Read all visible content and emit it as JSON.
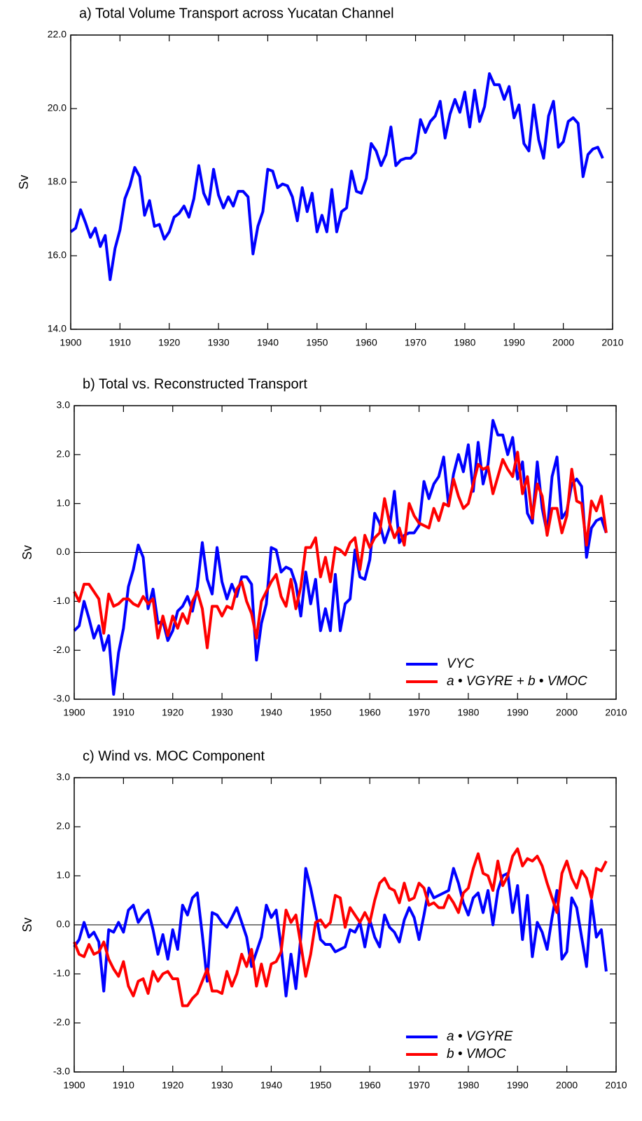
{
  "chart_data": [
    {
      "type": "line",
      "title": "a) Total Volume Transport across Yucatan Channel",
      "y_label": "Sv",
      "x": [
        1900,
        1901,
        1902,
        1903,
        1904,
        1905,
        1906,
        1907,
        1908,
        1909,
        1910,
        1911,
        1912,
        1913,
        1914,
        1915,
        1916,
        1917,
        1918,
        1919,
        1920,
        1921,
        1922,
        1923,
        1924,
        1925,
        1926,
        1927,
        1928,
        1929,
        1930,
        1931,
        1932,
        1933,
        1934,
        1935,
        1936,
        1937,
        1938,
        1939,
        1940,
        1941,
        1942,
        1943,
        1944,
        1945,
        1946,
        1947,
        1948,
        1949,
        1950,
        1951,
        1952,
        1953,
        1954,
        1955,
        1956,
        1957,
        1958,
        1959,
        1960,
        1961,
        1962,
        1963,
        1964,
        1965,
        1966,
        1967,
        1968,
        1969,
        1970,
        1971,
        1972,
        1973,
        1974,
        1975,
        1976,
        1977,
        1978,
        1979,
        1980,
        1981,
        1982,
        1983,
        1984,
        1985,
        1986,
        1987,
        1988,
        1989,
        1990,
        1991,
        1992,
        1993,
        1994,
        1995,
        1996,
        1997,
        1998,
        1999,
        2000,
        2001,
        2002,
        2003,
        2004,
        2005,
        2006,
        2007,
        2008
      ],
      "series": [
        {
          "color": "#0000ff",
          "values": [
            16.65,
            16.75,
            17.25,
            16.9,
            16.5,
            16.75,
            16.25,
            16.55,
            15.35,
            16.2,
            16.7,
            17.55,
            17.9,
            18.4,
            18.15,
            17.1,
            17.5,
            16.8,
            16.85,
            16.45,
            16.65,
            17.05,
            17.15,
            17.35,
            17.05,
            17.55,
            18.45,
            17.7,
            17.4,
            18.35,
            17.65,
            17.3,
            17.6,
            17.35,
            17.75,
            17.75,
            17.6,
            16.05,
            16.8,
            17.2,
            18.35,
            18.3,
            17.85,
            17.95,
            17.9,
            17.6,
            16.95,
            17.85,
            17.2,
            17.7,
            16.65,
            17.1,
            16.65,
            17.8,
            16.65,
            17.2,
            17.3,
            18.3,
            17.75,
            17.7,
            18.1,
            19.05,
            18.85,
            18.45,
            18.75,
            19.5,
            18.45,
            18.6,
            18.65,
            18.65,
            18.8,
            19.7,
            19.35,
            19.65,
            19.8,
            20.2,
            19.2,
            19.85,
            20.25,
            19.9,
            20.45,
            19.5,
            20.5,
            19.65,
            20.05,
            20.95,
            20.65,
            20.65,
            20.25,
            20.6,
            19.75,
            20.1,
            19.05,
            18.85,
            20.1,
            19.15,
            18.65,
            19.8,
            20.2,
            18.95,
            19.1,
            19.65,
            19.75,
            19.6,
            18.15,
            18.75,
            18.9,
            18.95,
            18.65
          ]
        }
      ],
      "xlim": [
        1900,
        2010
      ],
      "xticks": [
        1900,
        1910,
        1920,
        1930,
        1940,
        1950,
        1960,
        1970,
        1980,
        1990,
        2000,
        2010
      ],
      "ylim": [
        14,
        22
      ],
      "yticks": [
        {
          "value": 14,
          "label": "14.0"
        },
        {
          "value": 16,
          "label": "16.0"
        },
        {
          "value": 18,
          "label": "18.0"
        },
        {
          "value": 20,
          "label": "20.0"
        },
        {
          "value": 22,
          "label": "22.0"
        }
      ]
    },
    {
      "type": "line",
      "title": "b) Total vs. Reconstructed Transport",
      "y_label": "Sv",
      "reference_line": 0,
      "legend": "lower right",
      "x": [
        1900,
        1901,
        1902,
        1903,
        1904,
        1905,
        1906,
        1907,
        1908,
        1909,
        1910,
        1911,
        1912,
        1913,
        1914,
        1915,
        1916,
        1917,
        1918,
        1919,
        1920,
        1921,
        1922,
        1923,
        1924,
        1925,
        1926,
        1927,
        1928,
        1929,
        1930,
        1931,
        1932,
        1933,
        1934,
        1935,
        1936,
        1937,
        1938,
        1939,
        1940,
        1941,
        1942,
        1943,
        1944,
        1945,
        1946,
        1947,
        1948,
        1949,
        1950,
        1951,
        1952,
        1953,
        1954,
        1955,
        1956,
        1957,
        1958,
        1959,
        1960,
        1961,
        1962,
        1963,
        1964,
        1965,
        1966,
        1967,
        1968,
        1969,
        1970,
        1971,
        1972,
        1973,
        1974,
        1975,
        1976,
        1977,
        1978,
        1979,
        1980,
        1981,
        1982,
        1983,
        1984,
        1985,
        1986,
        1987,
        1988,
        1989,
        1990,
        1991,
        1992,
        1993,
        1994,
        1995,
        1996,
        1997,
        1998,
        1999,
        2000,
        2001,
        2002,
        2003,
        2004,
        2005,
        2006,
        2007,
        2008
      ],
      "series": [
        {
          "name": "VYC",
          "color": "#0000ff",
          "values": [
            -1.6,
            -1.5,
            -1.0,
            -1.35,
            -1.75,
            -1.5,
            -2.0,
            -1.7,
            -2.9,
            -2.05,
            -1.55,
            -0.7,
            -0.35,
            0.15,
            -0.1,
            -1.15,
            -0.75,
            -1.45,
            -1.4,
            -1.8,
            -1.6,
            -1.2,
            -1.1,
            -0.9,
            -1.2,
            -0.7,
            0.2,
            -0.55,
            -0.85,
            0.1,
            -0.6,
            -0.95,
            -0.65,
            -0.9,
            -0.5,
            -0.5,
            -0.65,
            -2.2,
            -1.45,
            -1.05,
            0.1,
            0.05,
            -0.4,
            -0.3,
            -0.35,
            -0.65,
            -1.3,
            -0.4,
            -1.05,
            -0.55,
            -1.6,
            -1.15,
            -1.6,
            -0.45,
            -1.6,
            -1.05,
            -0.95,
            0.05,
            -0.5,
            -0.55,
            -0.15,
            0.8,
            0.6,
            0.2,
            0.5,
            1.25,
            0.2,
            0.35,
            0.4,
            0.4,
            0.55,
            1.45,
            1.1,
            1.4,
            1.55,
            1.95,
            0.95,
            1.6,
            2.0,
            1.65,
            2.2,
            1.25,
            2.25,
            1.4,
            1.8,
            2.7,
            2.4,
            2.4,
            2.0,
            2.35,
            1.5,
            1.85,
            0.8,
            0.6,
            1.85,
            0.9,
            0.4,
            1.55,
            1.95,
            0.7,
            0.85,
            1.4,
            1.5,
            1.35,
            -0.1,
            0.5,
            0.65,
            0.7,
            0.4
          ]
        },
        {
          "name": "a • VGYRE + b • VMOC",
          "color": "#ff0000",
          "values": [
            -0.8,
            -1.0,
            -0.65,
            -0.65,
            -0.8,
            -0.95,
            -1.65,
            -0.85,
            -1.1,
            -1.05,
            -0.95,
            -0.95,
            -1.05,
            -1.1,
            -0.9,
            -1.05,
            -0.95,
            -1.75,
            -1.3,
            -1.7,
            -1.3,
            -1.55,
            -1.25,
            -1.45,
            -1.0,
            -0.8,
            -1.15,
            -1.95,
            -1.1,
            -1.1,
            -1.3,
            -1.1,
            -1.15,
            -0.75,
            -0.6,
            -1.0,
            -1.25,
            -1.75,
            -1.0,
            -0.8,
            -0.6,
            -0.45,
            -0.9,
            -1.1,
            -0.55,
            -1.15,
            -0.7,
            0.1,
            0.1,
            0.3,
            -0.5,
            -0.1,
            -0.6,
            0.1,
            0.05,
            -0.05,
            0.2,
            0.3,
            -0.35,
            0.35,
            0.1,
            0.3,
            0.4,
            1.1,
            0.6,
            0.3,
            0.5,
            0.15,
            1.0,
            0.75,
            0.6,
            0.55,
            0.5,
            0.9,
            0.65,
            1.0,
            0.95,
            1.5,
            1.15,
            0.9,
            1.0,
            1.4,
            1.8,
            1.7,
            1.75,
            1.2,
            1.55,
            1.9,
            1.7,
            1.55,
            2.05,
            1.2,
            1.55,
            0.7,
            1.4,
            1.15,
            0.35,
            0.9,
            0.9,
            0.4,
            0.75,
            1.7,
            1.05,
            1.0,
            0.15,
            1.05,
            0.85,
            1.15,
            0.4
          ]
        }
      ],
      "xlim": [
        1900,
        2010
      ],
      "xticks": [
        1900,
        1910,
        1920,
        1930,
        1940,
        1950,
        1960,
        1970,
        1980,
        1990,
        2000,
        2010
      ],
      "ylim": [
        -3,
        3
      ],
      "yticks": [
        {
          "value": -3,
          "label": "-3.0"
        },
        {
          "value": -2,
          "label": "-2.0"
        },
        {
          "value": -1,
          "label": "-1.0"
        },
        {
          "value": 0,
          "label": "0.0"
        },
        {
          "value": 1,
          "label": "1.0"
        },
        {
          "value": 2,
          "label": "2.0"
        },
        {
          "value": 3,
          "label": "3.0"
        }
      ]
    },
    {
      "type": "line",
      "title": "c) Wind vs. MOC Component",
      "y_label": "Sv",
      "reference_line": 0,
      "legend": "lower right",
      "x": [
        1900,
        1901,
        1902,
        1903,
        1904,
        1905,
        1906,
        1907,
        1908,
        1909,
        1910,
        1911,
        1912,
        1913,
        1914,
        1915,
        1916,
        1917,
        1918,
        1919,
        1920,
        1921,
        1922,
        1923,
        1924,
        1925,
        1926,
        1927,
        1928,
        1929,
        1930,
        1931,
        1932,
        1933,
        1934,
        1935,
        1936,
        1937,
        1938,
        1939,
        1940,
        1941,
        1942,
        1943,
        1944,
        1945,
        1946,
        1947,
        1948,
        1949,
        1950,
        1951,
        1952,
        1953,
        1954,
        1955,
        1956,
        1957,
        1958,
        1959,
        1960,
        1961,
        1962,
        1963,
        1964,
        1965,
        1966,
        1967,
        1968,
        1969,
        1970,
        1971,
        1972,
        1973,
        1974,
        1975,
        1976,
        1977,
        1978,
        1979,
        1980,
        1981,
        1982,
        1983,
        1984,
        1985,
        1986,
        1987,
        1988,
        1989,
        1990,
        1991,
        1992,
        1993,
        1994,
        1995,
        1996,
        1997,
        1998,
        1999,
        2000,
        2001,
        2002,
        2003,
        2004,
        2005,
        2006,
        2007,
        2008
      ],
      "series": [
        {
          "name": "a • VGYRE",
          "color": "#0000ff",
          "values": [
            -0.45,
            -0.3,
            0.05,
            -0.25,
            -0.15,
            -0.35,
            -1.35,
            -0.1,
            -0.15,
            0.05,
            -0.15,
            0.3,
            0.4,
            0.05,
            0.2,
            0.3,
            -0.1,
            -0.6,
            -0.2,
            -0.7,
            -0.1,
            -0.5,
            0.4,
            0.2,
            0.55,
            0.65,
            -0.2,
            -1.15,
            0.25,
            0.2,
            0.05,
            -0.05,
            0.15,
            0.35,
            0.05,
            -0.25,
            -0.85,
            -0.55,
            -0.25,
            0.4,
            0.15,
            0.3,
            -0.45,
            -1.45,
            -0.6,
            -1.3,
            -0.25,
            1.15,
            0.75,
            0.25,
            -0.3,
            -0.4,
            -0.4,
            -0.55,
            -0.5,
            -0.45,
            -0.1,
            -0.15,
            0.05,
            -0.45,
            0.1,
            -0.25,
            -0.45,
            0.2,
            -0.05,
            -0.15,
            -0.35,
            0.1,
            0.35,
            0.15,
            -0.3,
            0.2,
            0.75,
            0.55,
            0.6,
            0.65,
            0.7,
            1.15,
            0.85,
            0.45,
            0.2,
            0.55,
            0.65,
            0.25,
            0.7,
            0.0,
            0.7,
            1.0,
            1.05,
            0.25,
            0.8,
            -0.3,
            0.6,
            -0.65,
            0.05,
            -0.15,
            -0.5,
            0.15,
            0.7,
            -0.7,
            -0.55,
            0.55,
            0.35,
            -0.25,
            -0.85,
            0.5,
            -0.25,
            -0.1,
            -0.95
          ]
        },
        {
          "name": "b • VMOC",
          "color": "#ff0000",
          "values": [
            -0.35,
            -0.6,
            -0.65,
            -0.4,
            -0.6,
            -0.55,
            -0.35,
            -0.7,
            -0.9,
            -1.05,
            -0.75,
            -1.25,
            -1.45,
            -1.15,
            -1.1,
            -1.4,
            -0.95,
            -1.15,
            -1.0,
            -0.95,
            -1.1,
            -1.1,
            -1.65,
            -1.65,
            -1.5,
            -1.4,
            -1.15,
            -0.9,
            -1.35,
            -1.35,
            -1.4,
            -0.95,
            -1.25,
            -1.0,
            -0.6,
            -0.85,
            -0.5,
            -1.25,
            -0.8,
            -1.25,
            -0.8,
            -0.75,
            -0.55,
            0.3,
            0.05,
            0.2,
            -0.4,
            -1.05,
            -0.6,
            0.05,
            0.1,
            -0.05,
            0.05,
            0.6,
            0.55,
            -0.05,
            0.35,
            0.2,
            0.05,
            0.25,
            0.05,
            0.5,
            0.85,
            0.95,
            0.75,
            0.7,
            0.45,
            0.85,
            0.5,
            0.55,
            0.85,
            0.75,
            0.4,
            0.45,
            0.35,
            0.35,
            0.6,
            0.45,
            0.25,
            0.65,
            0.75,
            1.15,
            1.45,
            1.05,
            1.0,
            0.7,
            1.3,
            0.8,
            1.0,
            1.4,
            1.55,
            1.2,
            1.35,
            1.3,
            1.4,
            1.2,
            0.85,
            0.55,
            0.25,
            1.05,
            1.3,
            0.95,
            0.75,
            1.1,
            0.95,
            0.55,
            1.15,
            1.1,
            1.3
          ]
        }
      ],
      "xlim": [
        1900,
        2010
      ],
      "xticks": [
        1900,
        1910,
        1920,
        1930,
        1940,
        1950,
        1960,
        1970,
        1980,
        1990,
        2000,
        2010
      ],
      "ylim": [
        -3,
        3
      ],
      "yticks": [
        {
          "value": -3,
          "label": "-3.0"
        },
        {
          "value": -2,
          "label": "-2.0"
        },
        {
          "value": -1,
          "label": "-1.0"
        },
        {
          "value": 0,
          "label": "0.0"
        },
        {
          "value": 1,
          "label": "1.0"
        },
        {
          "value": 2,
          "label": "2.0"
        },
        {
          "value": 3,
          "label": "3.0"
        }
      ]
    }
  ]
}
